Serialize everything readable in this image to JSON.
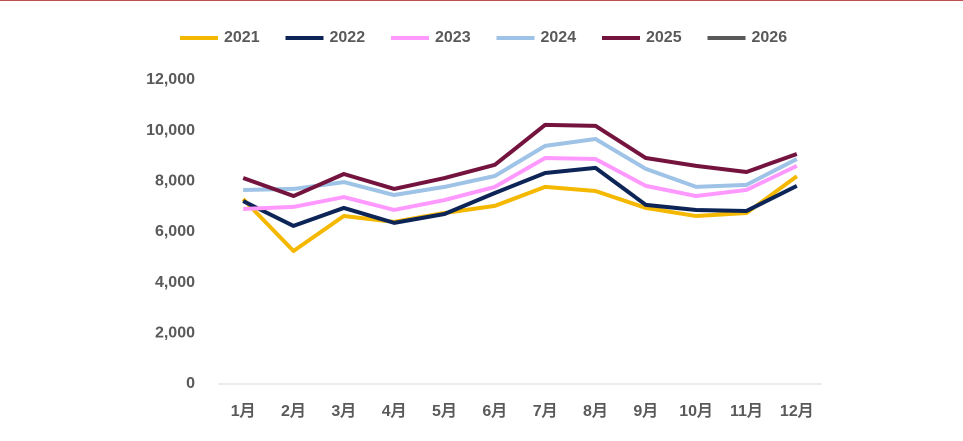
{
  "chart_data": {
    "type": "line",
    "categories": [
      "1月",
      "2月",
      "3月",
      "4月",
      "5月",
      "6月",
      "7月",
      "8月",
      "9月",
      "10月",
      "11月",
      "12月"
    ],
    "series": [
      {
        "name": "2021",
        "color": "#f5b800",
        "values": [
          7300,
          5250,
          6630,
          6400,
          6750,
          7030,
          7780,
          7620,
          6950,
          6630,
          6750,
          8200
        ]
      },
      {
        "name": "2022",
        "color": "#0d2457",
        "values": [
          7220,
          6240,
          6950,
          6360,
          6710,
          7540,
          8330,
          8530,
          7070,
          6870,
          6830,
          7820
        ]
      },
      {
        "name": "2023",
        "color": "#ff99ff",
        "values": [
          6910,
          6990,
          7380,
          6870,
          7260,
          7780,
          8920,
          8880,
          7820,
          7420,
          7660,
          8610
        ]
      },
      {
        "name": "2024",
        "color": "#9ec3e6",
        "values": [
          7660,
          7700,
          7970,
          7460,
          7780,
          8210,
          9400,
          9670,
          8490,
          7780,
          7860,
          8880
        ]
      },
      {
        "name": "2025",
        "color": "#74143e",
        "values": [
          8130,
          7420,
          8290,
          7700,
          8130,
          8650,
          10230,
          10190,
          8920,
          8610,
          8370,
          9080
        ]
      },
      {
        "name": "2026",
        "color": "#595959",
        "values": [
          null,
          null,
          null,
          null,
          null,
          null,
          null,
          null,
          null,
          null,
          null,
          null
        ]
      }
    ],
    "ylim": [
      0,
      12000
    ],
    "yticks": [
      0,
      {
        "value": 2000,
        "label": "2,000"
      },
      {
        "value": 4000,
        "label": "4,000"
      },
      {
        "value": 6000,
        "label": "6,000"
      },
      {
        "value": 8000,
        "label": "8,000"
      },
      {
        "value": 10000,
        "label": "10,000"
      },
      {
        "value": 12000,
        "label": "12,000"
      }
    ],
    "grid": false,
    "legend": "top"
  }
}
